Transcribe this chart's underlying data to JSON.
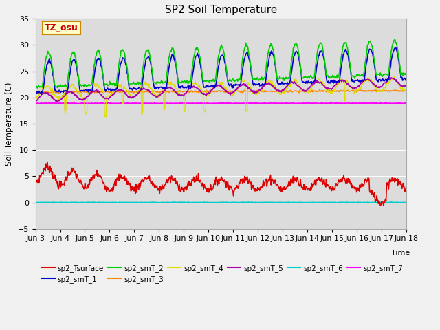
{
  "title": "SP2 Soil Temperature",
  "ylabel": "Soil Temperature (C)",
  "xlabel": "Time",
  "tz_label": "TZ_osu",
  "ylim": [
    -5,
    35
  ],
  "xtick_labels": [
    "Jun 3",
    "Jun 4",
    "Jun 5",
    "Jun 6",
    "Jun 7",
    "Jun 8",
    "Jun 9",
    "Jun 10",
    "Jun 11",
    "Jun 12",
    "Jun 13",
    "Jun 14",
    "Jun 15",
    "Jun 16",
    "Jun 17",
    "Jun 18"
  ],
  "colors": {
    "sp2_Tsurface": "#dd0000",
    "sp2_smT_1": "#0000cc",
    "sp2_smT_2": "#00cc00",
    "sp2_smT_3": "#ff8800",
    "sp2_smT_4": "#dddd00",
    "sp2_smT_5": "#aa00aa",
    "sp2_smT_6": "#00cccc",
    "sp2_smT_7": "#ff00ff"
  },
  "fig_bg": "#f0f0f0",
  "plot_bg": "#dcdcdc",
  "grid_color": "#ffffff",
  "n_days": 15,
  "pts_per_day": 48
}
